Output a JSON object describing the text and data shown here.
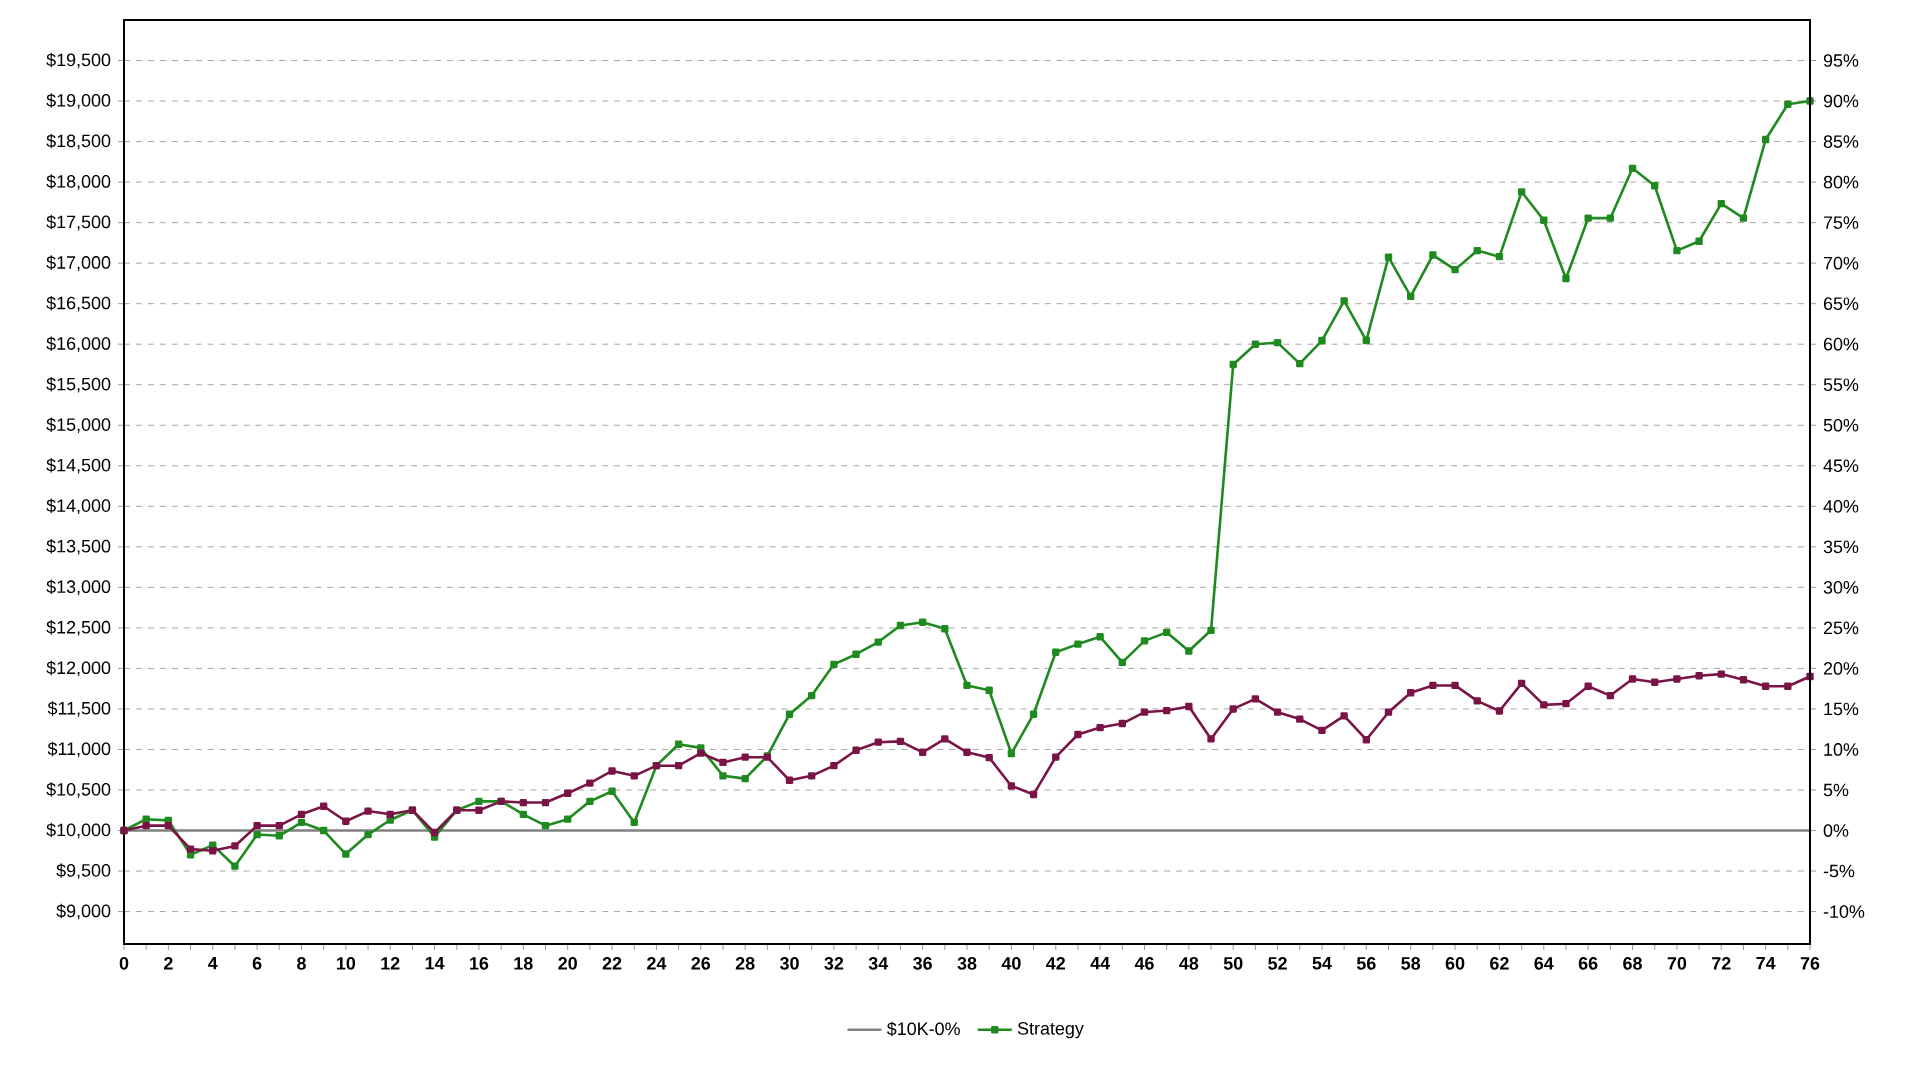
{
  "chart_data": {
    "type": "line",
    "x": [
      0,
      1,
      2,
      3,
      4,
      5,
      6,
      7,
      8,
      9,
      10,
      11,
      12,
      13,
      14,
      15,
      16,
      17,
      18,
      19,
      20,
      21,
      22,
      23,
      24,
      25,
      26,
      27,
      28,
      29,
      30,
      31,
      32,
      33,
      34,
      35,
      36,
      37,
      38,
      39,
      40,
      41,
      42,
      43,
      44,
      45,
      46,
      47,
      48,
      49,
      50,
      51,
      52,
      53,
      54,
      55,
      56,
      57,
      58,
      59,
      60,
      61,
      62,
      63,
      64,
      65,
      66,
      67,
      68,
      69,
      70,
      71,
      72,
      73,
      74,
      75,
      76
    ],
    "series": [
      {
        "name": "$10K-0%",
        "color": "#808080",
        "marker": "none",
        "values": [
          10000,
          10000,
          10000,
          10000,
          10000,
          10000,
          10000,
          10000,
          10000,
          10000,
          10000,
          10000,
          10000,
          10000,
          10000,
          10000,
          10000,
          10000,
          10000,
          10000,
          10000,
          10000,
          10000,
          10000,
          10000,
          10000,
          10000,
          10000,
          10000,
          10000,
          10000,
          10000,
          10000,
          10000,
          10000,
          10000,
          10000,
          10000,
          10000,
          10000,
          10000,
          10000,
          10000,
          10000,
          10000,
          10000,
          10000,
          10000,
          10000,
          10000,
          10000,
          10000,
          10000,
          10000,
          10000,
          10000,
          10000,
          10000,
          10000,
          10000,
          10000,
          10000,
          10000,
          10000,
          10000,
          10000,
          10000,
          10000,
          10000,
          10000,
          10000,
          10000,
          10000,
          10000,
          10000,
          10000,
          10000
        ]
      },
      {
        "name": "Strategy",
        "color": "#1f8a1f",
        "marker": "square",
        "values": [
          10000,
          10140,
          10125,
          9700,
          9820,
          9560,
          9950,
          9935,
          10100,
          10000,
          9710,
          9950,
          10130,
          10250,
          9920,
          10250,
          10360,
          10360,
          10200,
          10060,
          10140,
          10360,
          10485,
          10100,
          10800,
          11065,
          11020,
          10675,
          10640,
          10920,
          11435,
          11665,
          12050,
          12175,
          12325,
          12530,
          12570,
          12490,
          11790,
          11730,
          10950,
          11435,
          12200,
          12300,
          12390,
          12075,
          12340,
          12445,
          12215,
          12470,
          15750,
          16000,
          16020,
          15760,
          16045,
          16535,
          16045,
          17075,
          16590,
          17100,
          16920,
          17155,
          17080,
          17880,
          17530,
          16810,
          17555,
          17555,
          18170,
          17955,
          17155,
          17270,
          17735,
          17555,
          18525,
          18960,
          19000
        ]
      },
      {
        "color": "#7a1446",
        "marker": "square",
        "values": [
          10000,
          10060,
          10060,
          9770,
          9750,
          9810,
          10060,
          10060,
          10200,
          10300,
          10115,
          10240,
          10200,
          10250,
          9975,
          10250,
          10250,
          10360,
          10345,
          10345,
          10460,
          10585,
          10735,
          10675,
          10800,
          10800,
          10955,
          10840,
          10905,
          10905,
          10620,
          10675,
          10800,
          10990,
          11090,
          11100,
          10965,
          11130,
          10965,
          10900,
          10550,
          10445,
          10905,
          11185,
          11270,
          11320,
          11460,
          11480,
          11530,
          11130,
          11500,
          11625,
          11460,
          11375,
          11235,
          11415,
          11120,
          11460,
          11700,
          11790,
          11790,
          11600,
          11475,
          11815,
          11550,
          11565,
          11780,
          11665,
          11870,
          11830,
          11870,
          11910,
          11930,
          11860,
          11780,
          11780,
          11900
        ]
      }
    ],
    "xlim": [
      0,
      76
    ],
    "xticks": [
      0,
      {
        "value": 1,
        "label": null
      },
      2,
      {
        "value": 3,
        "label": null
      },
      4,
      {
        "value": 5,
        "label": null
      },
      6,
      {
        "value": 7,
        "label": null
      },
      8,
      {
        "value": 9,
        "label": null
      },
      10,
      {
        "value": 11,
        "label": null
      },
      12,
      {
        "value": 13,
        "label": null
      },
      14,
      {
        "value": 15,
        "label": null
      },
      16,
      {
        "value": 17,
        "label": null
      },
      18,
      {
        "value": 19,
        "label": null
      },
      20,
      {
        "value": 21,
        "label": null
      },
      22,
      {
        "value": 23,
        "label": null
      },
      24,
      {
        "value": 25,
        "label": null
      },
      26,
      {
        "value": 27,
        "label": null
      },
      28,
      {
        "value": 29,
        "label": null
      },
      30,
      {
        "value": 31,
        "label": null
      },
      32,
      {
        "value": 33,
        "label": null
      },
      34,
      {
        "value": 35,
        "label": null
      },
      36,
      {
        "value": 37,
        "label": null
      },
      38,
      {
        "value": 39,
        "label": null
      },
      40,
      {
        "value": 41,
        "label": null
      },
      42,
      {
        "value": 43,
        "label": null
      },
      44,
      {
        "value": 45,
        "label": null
      },
      46,
      {
        "value": 47,
        "label": null
      },
      48,
      {
        "value": 49,
        "label": null
      },
      50,
      {
        "value": 51,
        "label": null
      },
      52,
      {
        "value": 53,
        "label": null
      },
      54,
      {
        "value": 55,
        "label": null
      },
      56,
      {
        "value": 57,
        "label": null
      },
      58,
      {
        "value": 59,
        "label": null
      },
      60,
      {
        "value": 61,
        "label": null
      },
      62,
      {
        "value": 63,
        "label": null
      },
      64,
      {
        "value": 65,
        "label": null
      },
      66,
      {
        "value": 67,
        "label": null
      },
      68,
      {
        "value": 69,
        "label": null
      },
      70,
      {
        "value": 71,
        "label": null
      },
      72,
      {
        "value": 73,
        "label": null
      },
      74,
      {
        "value": 75,
        "label": null
      },
      76
    ],
    "ylim": [
      8600,
      20000
    ],
    "yticks": [
      {
        "value": 9000,
        "label": "$9,000"
      },
      {
        "value": 9500,
        "label": "$9,500"
      },
      {
        "value": 10000,
        "label": "$10,000"
      },
      {
        "value": 10500,
        "label": "$10,500"
      },
      {
        "value": 11000,
        "label": "$11,000"
      },
      {
        "value": 11500,
        "label": "$11,500"
      },
      {
        "value": 12000,
        "label": "$12,000"
      },
      {
        "value": 12500,
        "label": "$12,500"
      },
      {
        "value": 13000,
        "label": "$13,000"
      },
      {
        "value": 13500,
        "label": "$13,500"
      },
      {
        "value": 14000,
        "label": "$14,000"
      },
      {
        "value": 14500,
        "label": "$14,500"
      },
      {
        "value": 15000,
        "label": "$15,000"
      },
      {
        "value": 15500,
        "label": "$15,500"
      },
      {
        "value": 16000,
        "label": "$16,000"
      },
      {
        "value": 16500,
        "label": "$16,500"
      },
      {
        "value": 17000,
        "label": "$17,000"
      },
      {
        "value": 17500,
        "label": "$17,500"
      },
      {
        "value": 18000,
        "label": "$18,000"
      },
      {
        "value": 18500,
        "label": "$18,500"
      },
      {
        "value": 19000,
        "label": "$19,000"
      },
      {
        "value": 19500,
        "label": "$19,500"
      }
    ],
    "y2lim": [
      -14,
      100
    ],
    "y2ticks": [
      {
        "value": -10,
        "label": "-10%"
      },
      {
        "value": -5,
        "label": "-5%"
      },
      {
        "value": 0,
        "label": "0%"
      },
      {
        "value": 5,
        "label": "5%"
      },
      {
        "value": 10,
        "label": "10%"
      },
      {
        "value": 15,
        "label": "15%"
      },
      {
        "value": 20,
        "label": "20%"
      },
      {
        "value": 25,
        "label": "25%"
      },
      {
        "value": 30,
        "label": "30%"
      },
      {
        "value": 35,
        "label": "35%"
      },
      {
        "value": 40,
        "label": "40%"
      },
      {
        "value": 45,
        "label": "45%"
      },
      {
        "value": 50,
        "label": "50%"
      },
      {
        "value": 55,
        "label": "55%"
      },
      {
        "value": 60,
        "label": "60%"
      },
      {
        "value": 65,
        "label": "65%"
      },
      {
        "value": 70,
        "label": "70%"
      },
      {
        "value": 75,
        "label": "75%"
      },
      {
        "value": 80,
        "label": "80%"
      },
      {
        "value": 85,
        "label": "85%"
      },
      {
        "value": 90,
        "label": "90%"
      },
      {
        "value": 95,
        "label": "95%"
      }
    ],
    "grid": "y",
    "legend": "bottom"
  }
}
